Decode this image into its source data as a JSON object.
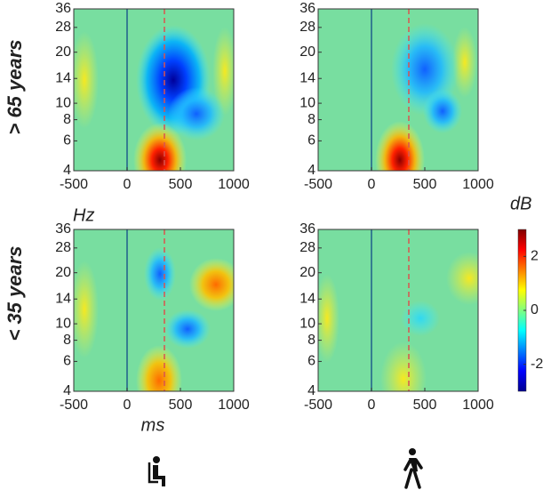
{
  "chart_data": [
    {
      "type": "heatmap",
      "xlim": [
        -500,
        1000
      ],
      "ylim": [
        4,
        36
      ],
      "log_y": true,
      "xticks": [
        -500,
        0,
        500,
        1000
      ],
      "yticks": [
        4,
        6,
        8,
        10,
        14,
        20,
        28,
        36
      ],
      "vlines": [
        {
          "value": 0,
          "color": "#1f5f8b",
          "style": "solid"
        },
        {
          "value": 350,
          "color": "#d9534f",
          "style": "dashed"
        }
      ]
    },
    {
      "type": "heatmap",
      "xlim": [
        -500,
        1000
      ],
      "ylim": [
        4,
        36
      ],
      "log_y": true,
      "xticks": [
        -500,
        0,
        500,
        1000
      ],
      "yticks": [
        4,
        6,
        8,
        10,
        14,
        20,
        28,
        36
      ],
      "vlines": [
        {
          "value": 0,
          "color": "#1f5f8b",
          "style": "solid"
        },
        {
          "value": 350,
          "color": "#d9534f",
          "style": "dashed"
        }
      ]
    },
    {
      "type": "heatmap",
      "xlim": [
        -500,
        1000
      ],
      "ylim": [
        4,
        36
      ],
      "log_y": true,
      "xticks": [
        -500,
        0,
        500,
        1000
      ],
      "yticks": [
        4,
        6,
        8,
        10,
        14,
        20,
        28,
        36
      ],
      "vlines": [
        {
          "value": 0,
          "color": "#1f5f8b",
          "style": "solid"
        },
        {
          "value": 350,
          "color": "#d9534f",
          "style": "dashed"
        }
      ]
    },
    {
      "type": "heatmap",
      "xlim": [
        -500,
        1000
      ],
      "ylim": [
        4,
        36
      ],
      "log_y": true,
      "xticks": [
        -500,
        0,
        500,
        1000
      ],
      "yticks": [
        4,
        6,
        8,
        10,
        14,
        20,
        28,
        36
      ],
      "vlines": [
        {
          "value": 0,
          "color": "#1f5f8b",
          "style": "solid"
        },
        {
          "value": 350,
          "color": "#d9534f",
          "style": "dashed"
        }
      ]
    }
  ],
  "row_labels": [
    "> 65 years",
    "< 35 years"
  ],
  "y_axis_label": "Hz",
  "x_axis_label": "ms",
  "colorbar": {
    "label": "dB",
    "clim": [
      -3,
      3
    ],
    "ticks": [
      2,
      0,
      -2
    ]
  }
}
